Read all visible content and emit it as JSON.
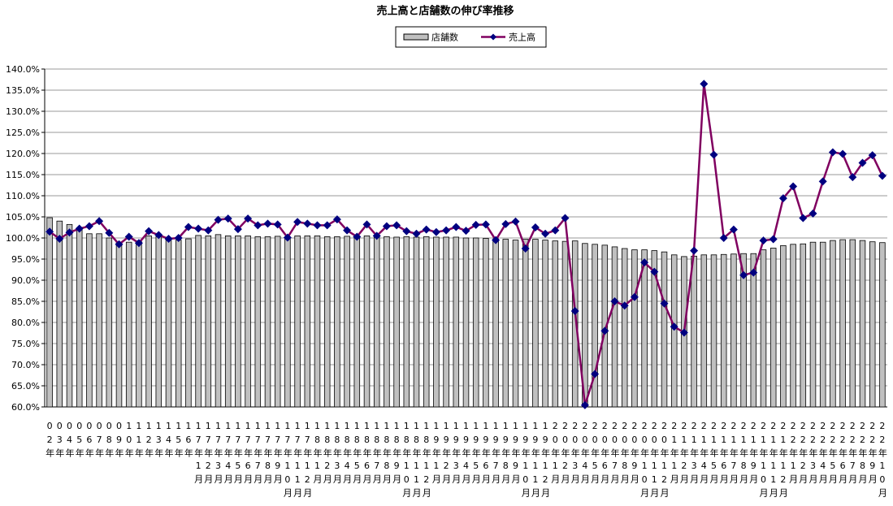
{
  "chart_data": {
    "type": "bar-line",
    "title": "売上高と店舗数の伸び率推移",
    "categories": [
      "02年",
      "03年",
      "04年",
      "05年",
      "06年",
      "07年",
      "08年",
      "09年",
      "10年",
      "11年",
      "12年",
      "13年",
      "14年",
      "15年",
      "16年",
      "17年1月",
      "17年2月",
      "17年3月",
      "17年4月",
      "17年5月",
      "17年6月",
      "17年7月",
      "17年8月",
      "17年9月",
      "17年10月",
      "17年11月",
      "17年12月",
      "18年1月",
      "18年2月",
      "18年3月",
      "18年4月",
      "18年5月",
      "18年6月",
      "18年7月",
      "18年8月",
      "18年9月",
      "18年10月",
      "18年11月",
      "18年12月",
      "19年1月",
      "19年2月",
      "19年3月",
      "19年4月",
      "19年5月",
      "19年6月",
      "19年7月",
      "19年8月",
      "19年9月",
      "19年10月",
      "19年11月",
      "19年12月",
      "20年1月",
      "20年2月",
      "20年3月",
      "20年4月",
      "20年5月",
      "20年6月",
      "20年7月",
      "20年8月",
      "20年9月",
      "20年10月",
      "20年11月",
      "20年12月",
      "21年1月",
      "21年2月",
      "21年3月",
      "21年4月",
      "21年5月",
      "21年6月",
      "21年7月",
      "21年8月",
      "21年9月",
      "21年10月",
      "21年11月",
      "21年12月",
      "22年1月",
      "22年2月",
      "22年3月",
      "22年4月",
      "22年5月",
      "22年6月",
      "22年7月",
      "22年8月",
      "22年9月",
      "22年10月"
    ],
    "series": [
      {
        "name": "店舗数",
        "type": "bar",
        "color": "#c0c0c0",
        "values": [
          104.8,
          104.0,
          103.2,
          102.0,
          101.0,
          101.0,
          100.0,
          99.0,
          99.0,
          99.3,
          100.5,
          100.3,
          99.8,
          99.5,
          99.8,
          100.6,
          100.5,
          100.8,
          100.5,
          100.5,
          100.5,
          100.3,
          100.3,
          100.4,
          100.3,
          100.5,
          100.5,
          100.5,
          100.3,
          100.3,
          100.4,
          100.5,
          100.5,
          100.4,
          100.3,
          100.2,
          100.3,
          100.2,
          100.3,
          100.2,
          100.2,
          100.2,
          100.0,
          100.0,
          99.9,
          99.8,
          99.7,
          99.5,
          99.7,
          99.7,
          99.5,
          99.3,
          99.2,
          99.3,
          98.7,
          98.5,
          98.3,
          97.9,
          97.5,
          97.2,
          97.2,
          97.0,
          96.7,
          96.0,
          95.6,
          95.7,
          96.0,
          96.0,
          96.1,
          96.2,
          96.3,
          96.3,
          97.2,
          97.6,
          98.2,
          98.5,
          98.6,
          99.0,
          99.0,
          99.4,
          99.6,
          99.6,
          99.4,
          99.1,
          98.9
        ]
      },
      {
        "name": "売上高",
        "type": "line",
        "color": "#800060",
        "marker_color": "#000080",
        "values": [
          101.5,
          99.8,
          101.3,
          102.2,
          102.8,
          104.0,
          101.2,
          98.5,
          100.3,
          98.8,
          101.6,
          100.7,
          99.8,
          100.0,
          102.6,
          102.2,
          101.8,
          104.3,
          104.6,
          102.1,
          104.6,
          103.0,
          103.4,
          103.2,
          100.1,
          103.8,
          103.4,
          103.0,
          103.0,
          104.4,
          101.8,
          100.3,
          103.2,
          100.5,
          102.8,
          103.0,
          101.6,
          101.0,
          102.0,
          101.4,
          101.8,
          102.6,
          101.7,
          103.1,
          103.2,
          99.5,
          103.3,
          103.9,
          97.5,
          102.5,
          101.0,
          101.8,
          104.7,
          82.7,
          60.4,
          67.8,
          78.0,
          85.0,
          84.0,
          86.0,
          94.2,
          92.0,
          84.5,
          79.0,
          77.6,
          97.0,
          136.5,
          119.7,
          100.0,
          102.0,
          91.2,
          91.8,
          99.4,
          99.7,
          109.4,
          112.2,
          104.7,
          105.8,
          113.4,
          120.3,
          119.9,
          114.4,
          117.8,
          119.6,
          114.7
        ]
      }
    ],
    "ylim": [
      60,
      140
    ],
    "yticks": [
      {
        "value": 60,
        "label": "60.0%"
      },
      {
        "value": 65,
        "label": "65.0%"
      },
      {
        "value": 70,
        "label": "70.0%"
      },
      {
        "value": 75,
        "label": "75.0%"
      },
      {
        "value": 80,
        "label": "80.0%"
      },
      {
        "value": 85,
        "label": "85.0%"
      },
      {
        "value": 90,
        "label": "90.0%"
      },
      {
        "value": 95,
        "label": "95.0%"
      },
      {
        "value": 100,
        "label": "100.0%"
      },
      {
        "value": 105,
        "label": "105.0%"
      },
      {
        "value": 110,
        "label": "110.0%"
      },
      {
        "value": 115,
        "label": "115.0%"
      },
      {
        "value": 120,
        "label": "120.0%"
      },
      {
        "value": 125,
        "label": "125.0%"
      },
      {
        "value": 130,
        "label": "130.0%"
      },
      {
        "value": 135,
        "label": "135.0%"
      },
      {
        "value": 140,
        "label": "140.0%"
      }
    ],
    "grid": true,
    "legend": "top"
  }
}
